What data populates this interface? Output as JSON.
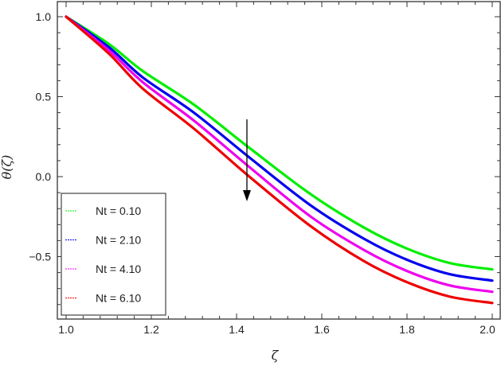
{
  "chart_data": {
    "type": "line",
    "title": "",
    "xlabel": "ζ",
    "ylabel": "θ(ζ)",
    "xlim": [
      1.0,
      2.0
    ],
    "ylim": [
      -0.9,
      1.07
    ],
    "grid": false,
    "legend_position": "lower-left (inside)",
    "x_ticks": [
      "1.0",
      "1.2",
      "1.4",
      "1.6",
      "1.8",
      "2.0"
    ],
    "y_ticks": [
      "1.0",
      "0.5",
      "0.0",
      "−0.5"
    ],
    "x": [
      1.0,
      1.1,
      1.18,
      1.3,
      1.43,
      1.574,
      1.7,
      1.8,
      1.9,
      2.0
    ],
    "series": [
      {
        "name": "Nt = 0.10",
        "color": "#00ee00",
        "values": [
          1.0,
          0.83,
          0.66,
          0.45,
          0.18,
          -0.11,
          -0.32,
          -0.45,
          -0.54,
          -0.58
        ]
      },
      {
        "name": "Nt = 2.10",
        "color": "#0000ee",
        "values": [
          1.0,
          0.81,
          0.62,
          0.4,
          0.12,
          -0.18,
          -0.39,
          -0.52,
          -0.61,
          -0.65
        ]
      },
      {
        "name": "Nt = 4.10",
        "color": "#ee00ee",
        "values": [
          1.0,
          0.79,
          0.59,
          0.35,
          0.06,
          -0.25,
          -0.46,
          -0.59,
          -0.68,
          -0.72
        ]
      },
      {
        "name": "Nt = 6.10",
        "color": "#ee0000",
        "values": [
          1.0,
          0.77,
          0.55,
          0.3,
          0.0,
          -0.31,
          -0.53,
          -0.66,
          -0.75,
          -0.79
        ]
      }
    ],
    "annotations": [
      {
        "type": "arrow",
        "direction": "down",
        "x": 1.425,
        "y_from": 0.36,
        "y_to": -0.15,
        "meaning": "increasing Nt"
      }
    ]
  },
  "axes": {
    "xlabel": "ζ",
    "ylabel": "θ(ζ)"
  },
  "legend": {
    "items": [
      {
        "label": "Nt = 0.10",
        "color": "#00ee00"
      },
      {
        "label": "Nt = 2.10",
        "color": "#0000ee"
      },
      {
        "label": "Nt = 4.10",
        "color": "#ee00ee"
      },
      {
        "label": "Nt = 6.10",
        "color": "#ee0000"
      }
    ]
  }
}
